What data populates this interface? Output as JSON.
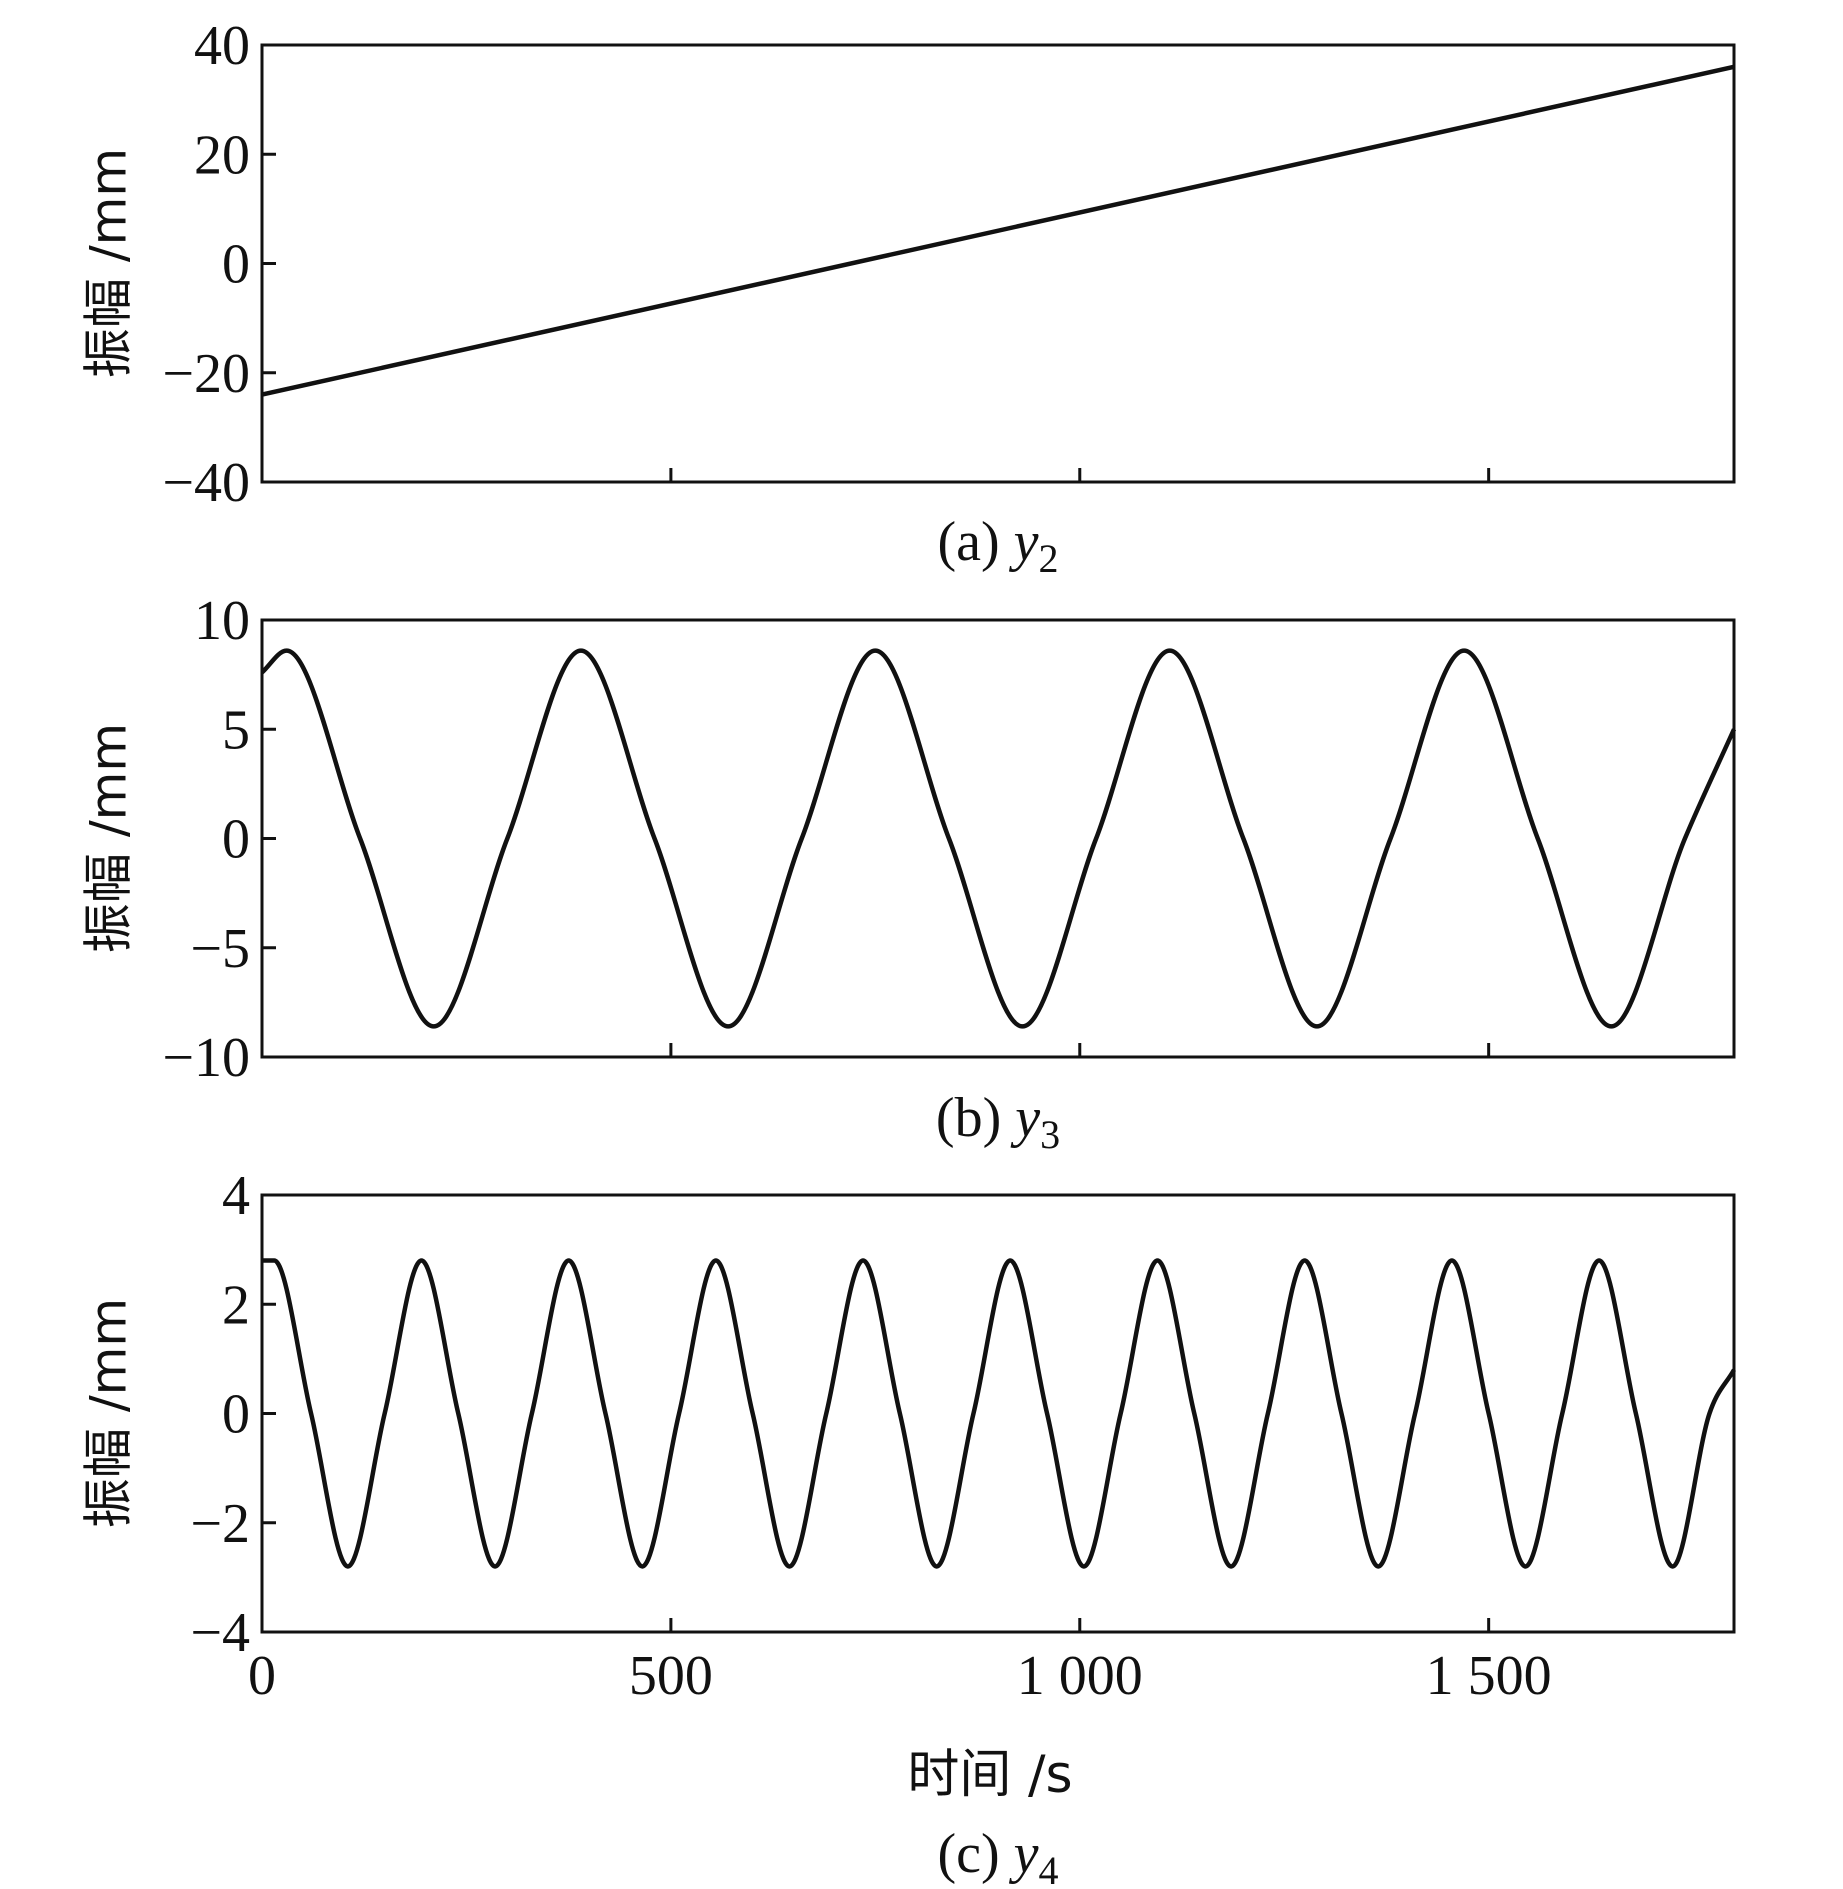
{
  "chart_data": [
    {
      "type": "line",
      "caption_prefix": "(a) ",
      "caption_var": "y",
      "caption_sub": "2",
      "ylabel": "振幅 /mm",
      "xlabel": "",
      "xlim": [
        0,
        1800
      ],
      "ylim": [
        -40,
        40
      ],
      "xticks": [
        0,
        500,
        1000,
        1500
      ],
      "xtick_labels": [
        "",
        "",
        "",
        ""
      ],
      "yticks": [
        -40,
        -20,
        0,
        20,
        40
      ],
      "ytick_labels": [
        "−40",
        "−20",
        "0",
        "20",
        "40"
      ],
      "series": [
        {
          "x": [
            0,
            1800
          ],
          "y": [
            -24,
            36
          ]
        }
      ],
      "grid": false
    },
    {
      "type": "line",
      "caption_prefix": "(b) ",
      "caption_var": "y",
      "caption_sub": "3",
      "ylabel": "振幅 /mm",
      "xlabel": "",
      "xlim": [
        0,
        1800
      ],
      "ylim": [
        -10,
        10
      ],
      "xticks": [
        0,
        500,
        1000,
        1500
      ],
      "xtick_labels": [
        "",
        "",
        "",
        ""
      ],
      "yticks": [
        -10,
        -5,
        0,
        5,
        10
      ],
      "ytick_labels": [
        "−10",
        "−5",
        "0",
        "5",
        "10"
      ],
      "series": [
        {
          "x": [
            0,
            30,
            120,
            210,
            300,
            390,
            480,
            570,
            660,
            750,
            840,
            930,
            1020,
            1110,
            1200,
            1290,
            1380,
            1470,
            1560,
            1650,
            1740,
            1800
          ],
          "y": [
            7.6,
            8.6,
            0,
            -8.6,
            0,
            8.6,
            0,
            -8.6,
            0,
            8.6,
            0,
            -8.6,
            0,
            8.6,
            0,
            -8.6,
            0,
            8.6,
            0,
            -8.6,
            0,
            5.0
          ]
        }
      ],
      "grid": false
    },
    {
      "type": "line",
      "caption_prefix": "(c) ",
      "caption_var": "y",
      "caption_sub": "4",
      "ylabel": "振幅 /mm",
      "xlabel": "时间 /s",
      "xlim": [
        0,
        1800
      ],
      "ylim": [
        -4,
        4
      ],
      "xticks": [
        0,
        500,
        1000,
        1500
      ],
      "xtick_labels": [
        "0",
        "500",
        "1 000",
        "1 500"
      ],
      "yticks": [
        -4,
        -2,
        0,
        2,
        4
      ],
      "ytick_labels": [
        "−4",
        "−2",
        "0",
        "2",
        "4"
      ],
      "series": [
        {
          "x": [
            0,
            15,
            60,
            105,
            150,
            195,
            240,
            285,
            330,
            375,
            420,
            465,
            510,
            555,
            600,
            645,
            690,
            735,
            780,
            825,
            870,
            915,
            960,
            1005,
            1050,
            1095,
            1140,
            1185,
            1230,
            1275,
            1320,
            1365,
            1410,
            1455,
            1500,
            1545,
            1590,
            1635,
            1680,
            1725,
            1770,
            1800
          ],
          "y": [
            2.8,
            2.8,
            0,
            -2.8,
            0,
            2.8,
            0,
            -2.8,
            0,
            2.8,
            0,
            -2.8,
            0,
            2.8,
            0,
            -2.8,
            0,
            2.8,
            0,
            -2.8,
            0,
            2.8,
            0,
            -2.8,
            0,
            2.8,
            0,
            -2.8,
            0,
            2.8,
            0,
            -2.8,
            0,
            2.8,
            0,
            -2.8,
            0,
            2.8,
            0,
            -2.8,
            0,
            0.8
          ]
        }
      ],
      "grid": false
    }
  ]
}
